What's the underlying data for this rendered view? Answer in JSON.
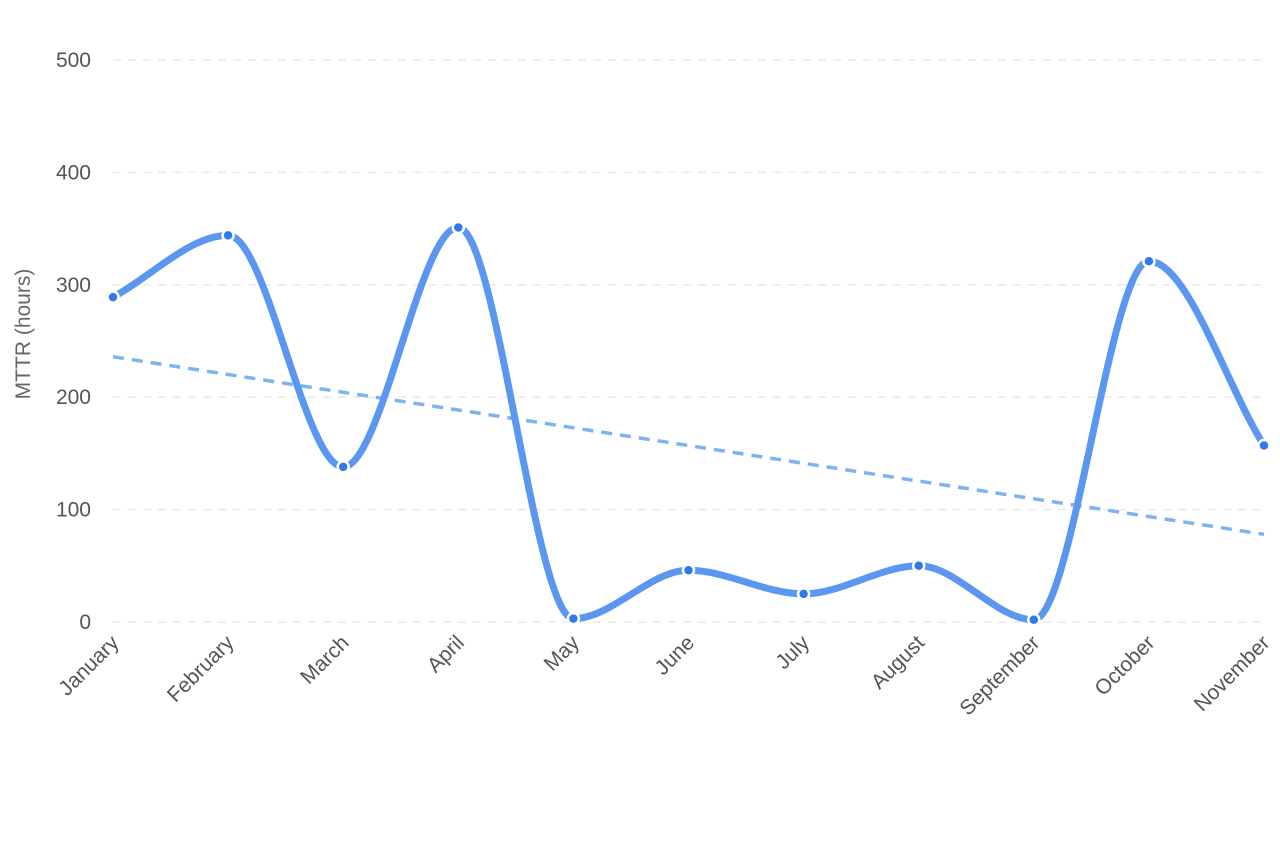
{
  "chart_data": {
    "type": "line",
    "title": "",
    "xlabel": "",
    "ylabel": "MTTR (hours)",
    "categories": [
      "January",
      "February",
      "March",
      "April",
      "May",
      "June",
      "July",
      "August",
      "September",
      "October",
      "November"
    ],
    "series": [
      {
        "values": [
          289,
          344,
          138,
          351,
          3,
          46,
          25,
          50,
          2,
          321,
          157
        ],
        "color": "#5b96f0",
        "marker_color": "#2f79ea",
        "smooth": true
      }
    ],
    "trendline": {
      "start": 236,
      "end": 78,
      "color": "#7db3ef",
      "style": "dashed"
    },
    "ylim": [
      0,
      500
    ],
    "yticks": [
      0,
      100,
      200,
      300,
      400,
      500
    ],
    "grid": true,
    "legend": "none"
  }
}
